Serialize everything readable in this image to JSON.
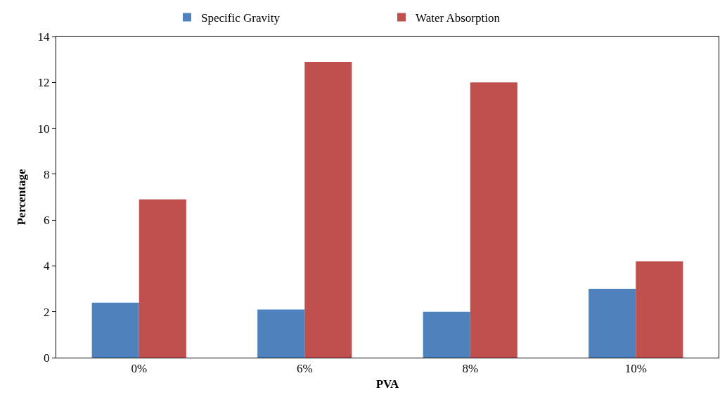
{
  "chart_data": {
    "type": "bar",
    "xlabel": "PVA",
    "ylabel": "Percentage",
    "categories": [
      "0%",
      "6%",
      "8%",
      "10%"
    ],
    "series": [
      {
        "name": "Specific Gravity",
        "color": "#4f81bd",
        "values": [
          2.4,
          2.1,
          2.0,
          3.0
        ]
      },
      {
        "name": "Water Absorption",
        "color": "#c0504d",
        "values": [
          6.9,
          12.9,
          12.0,
          4.2
        ]
      }
    ],
    "ylim": [
      0,
      14
    ],
    "yticks": [
      0,
      2,
      4,
      6,
      8,
      10,
      12,
      14
    ],
    "grid": false,
    "legend": "top"
  }
}
